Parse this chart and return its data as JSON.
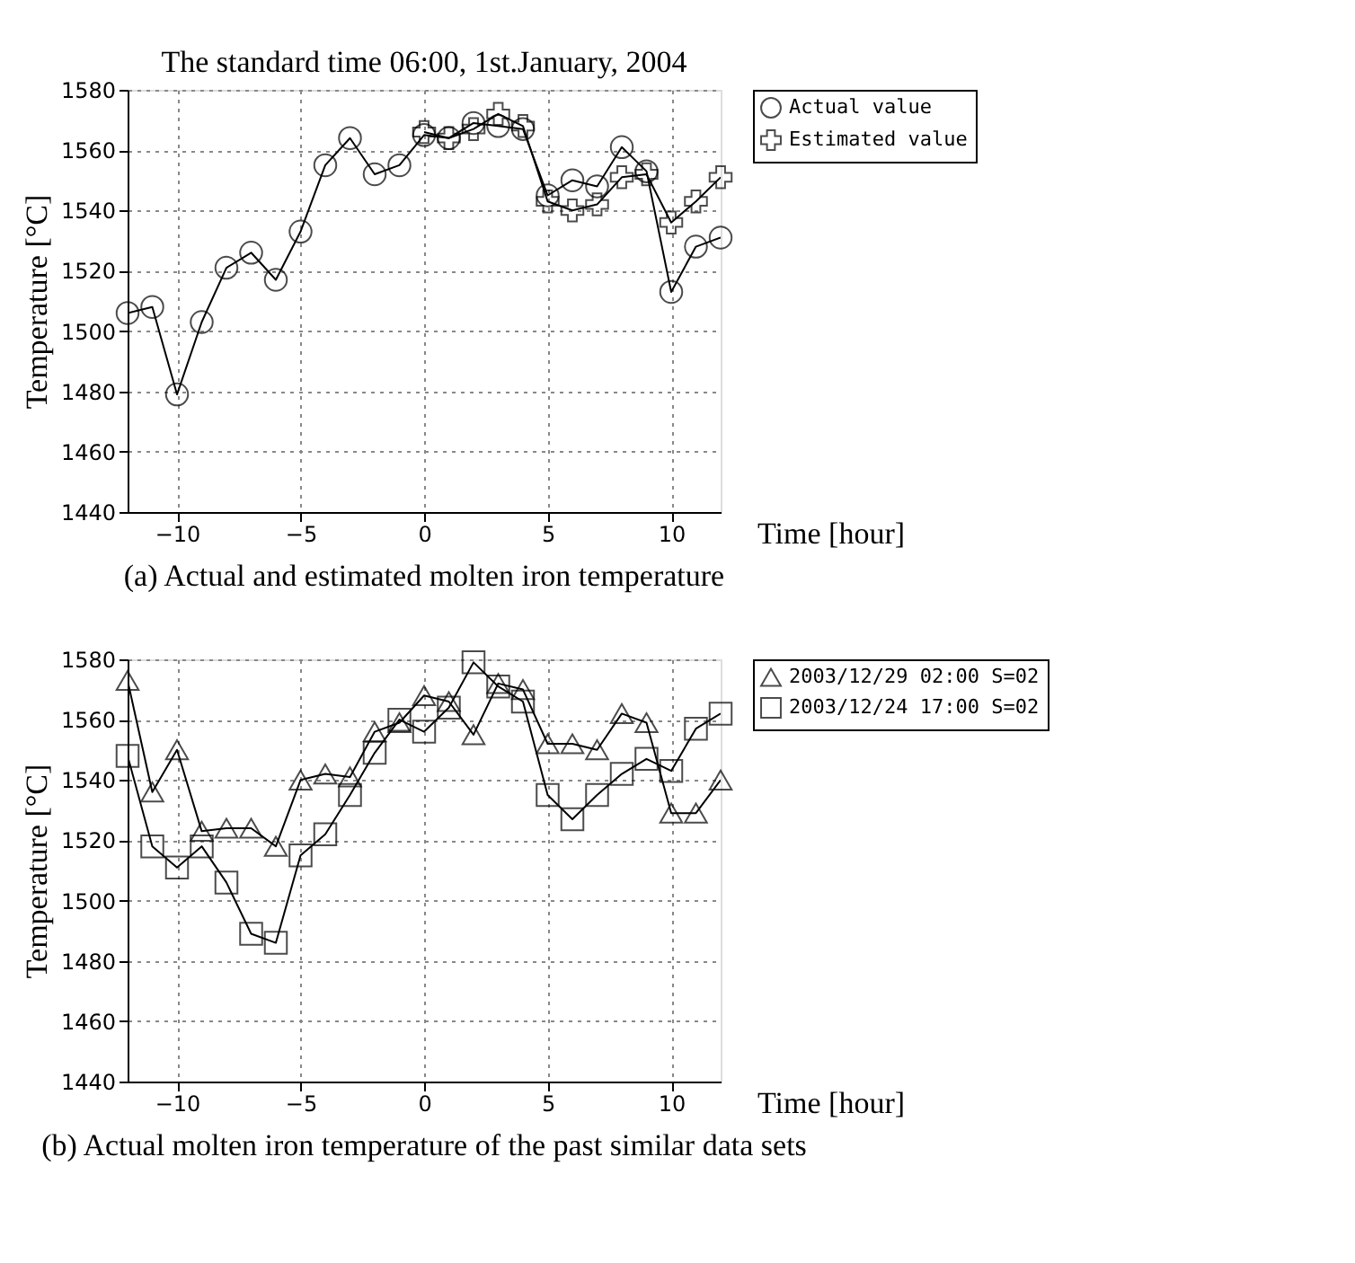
{
  "chart_data": [
    {
      "type": "line",
      "title": "The standard time 06:00, 1st.January, 2004",
      "xlabel": "Time [hour]",
      "ylabel": "Temperature [°C]",
      "annotations": [
        "(a) Actual and estimated molten iron temperature"
      ],
      "x": [
        -12,
        -11,
        -10,
        -9,
        -8,
        -7,
        -6,
        -5,
        -4,
        -3,
        -2,
        -1,
        0,
        1,
        2,
        3,
        4,
        5,
        6,
        7,
        8,
        9,
        10,
        11,
        12
      ],
      "series": [
        {
          "name": "Actual value",
          "color": "#000000",
          "marker": "circle",
          "values": [
            1506,
            1508,
            1479,
            1503,
            1521,
            1526,
            1517,
            1533,
            1555,
            1564,
            1552,
            1555,
            1565,
            1564,
            1569,
            1568,
            1567,
            1545,
            1550,
            1548,
            1561,
            1553,
            1513,
            1528,
            1531
          ]
        },
        {
          "name": "Estimated value",
          "color": "#000000",
          "marker": "cross",
          "x": [
            0,
            1,
            2,
            3,
            4,
            5,
            6,
            7,
            8,
            9,
            10,
            11,
            12
          ],
          "values": [
            1566,
            1564,
            1567,
            1572,
            1568,
            1543,
            1540,
            1542,
            1551,
            1552,
            1536,
            1543,
            1551
          ]
        }
      ],
      "xlim": [
        -12,
        12
      ],
      "xticks": [
        -10,
        -5,
        0,
        5,
        10
      ],
      "ylim": [
        1440,
        1580
      ],
      "yticks": [
        1440,
        1460,
        1480,
        1500,
        1520,
        1540,
        1560,
        1580
      ],
      "grid": true,
      "legend": "top right",
      "line_style": "solid"
    },
    {
      "type": "line",
      "xlabel": "Time [hour]",
      "ylabel": "Temperature [°C]",
      "annotations": [
        "(b) Actual molten iron temperature of the past similar data sets"
      ],
      "x": [
        -12,
        -11,
        -10,
        -9,
        -8,
        -7,
        -6,
        -5,
        -4,
        -3,
        -2,
        -1,
        0,
        1,
        2,
        3,
        4,
        5,
        6,
        7,
        8,
        9,
        10,
        11,
        12
      ],
      "series": [
        {
          "name": "2003/12/29 02:00 S=02",
          "color": "#000000",
          "marker": "triangle",
          "values": [
            1573,
            1536,
            1550,
            1523,
            1524,
            1524,
            1518,
            1540,
            1542,
            1541,
            1556,
            1559,
            1568,
            1566,
            1555,
            1572,
            1570,
            1552,
            1552,
            1550,
            1562,
            1559,
            1529,
            1529,
            1540
          ]
        },
        {
          "name": "2003/12/24 17:00 S=02",
          "color": "#000000",
          "marker": "square",
          "values": [
            1548,
            1518,
            1511,
            1518,
            1506,
            1489,
            1486,
            1515,
            1522,
            1535,
            1549,
            1560,
            1556,
            1564,
            1579,
            1571,
            1566,
            1535,
            1527,
            1535,
            1542,
            1547,
            1543,
            1557,
            1562
          ]
        }
      ],
      "xlim": [
        -12,
        12
      ],
      "xticks": [
        -10,
        -5,
        0,
        5,
        10
      ],
      "ylim": [
        1440,
        1580
      ],
      "yticks": [
        1440,
        1460,
        1480,
        1500,
        1520,
        1540,
        1560,
        1580
      ],
      "grid": true,
      "legend": "top right",
      "line_style": "solid"
    }
  ]
}
